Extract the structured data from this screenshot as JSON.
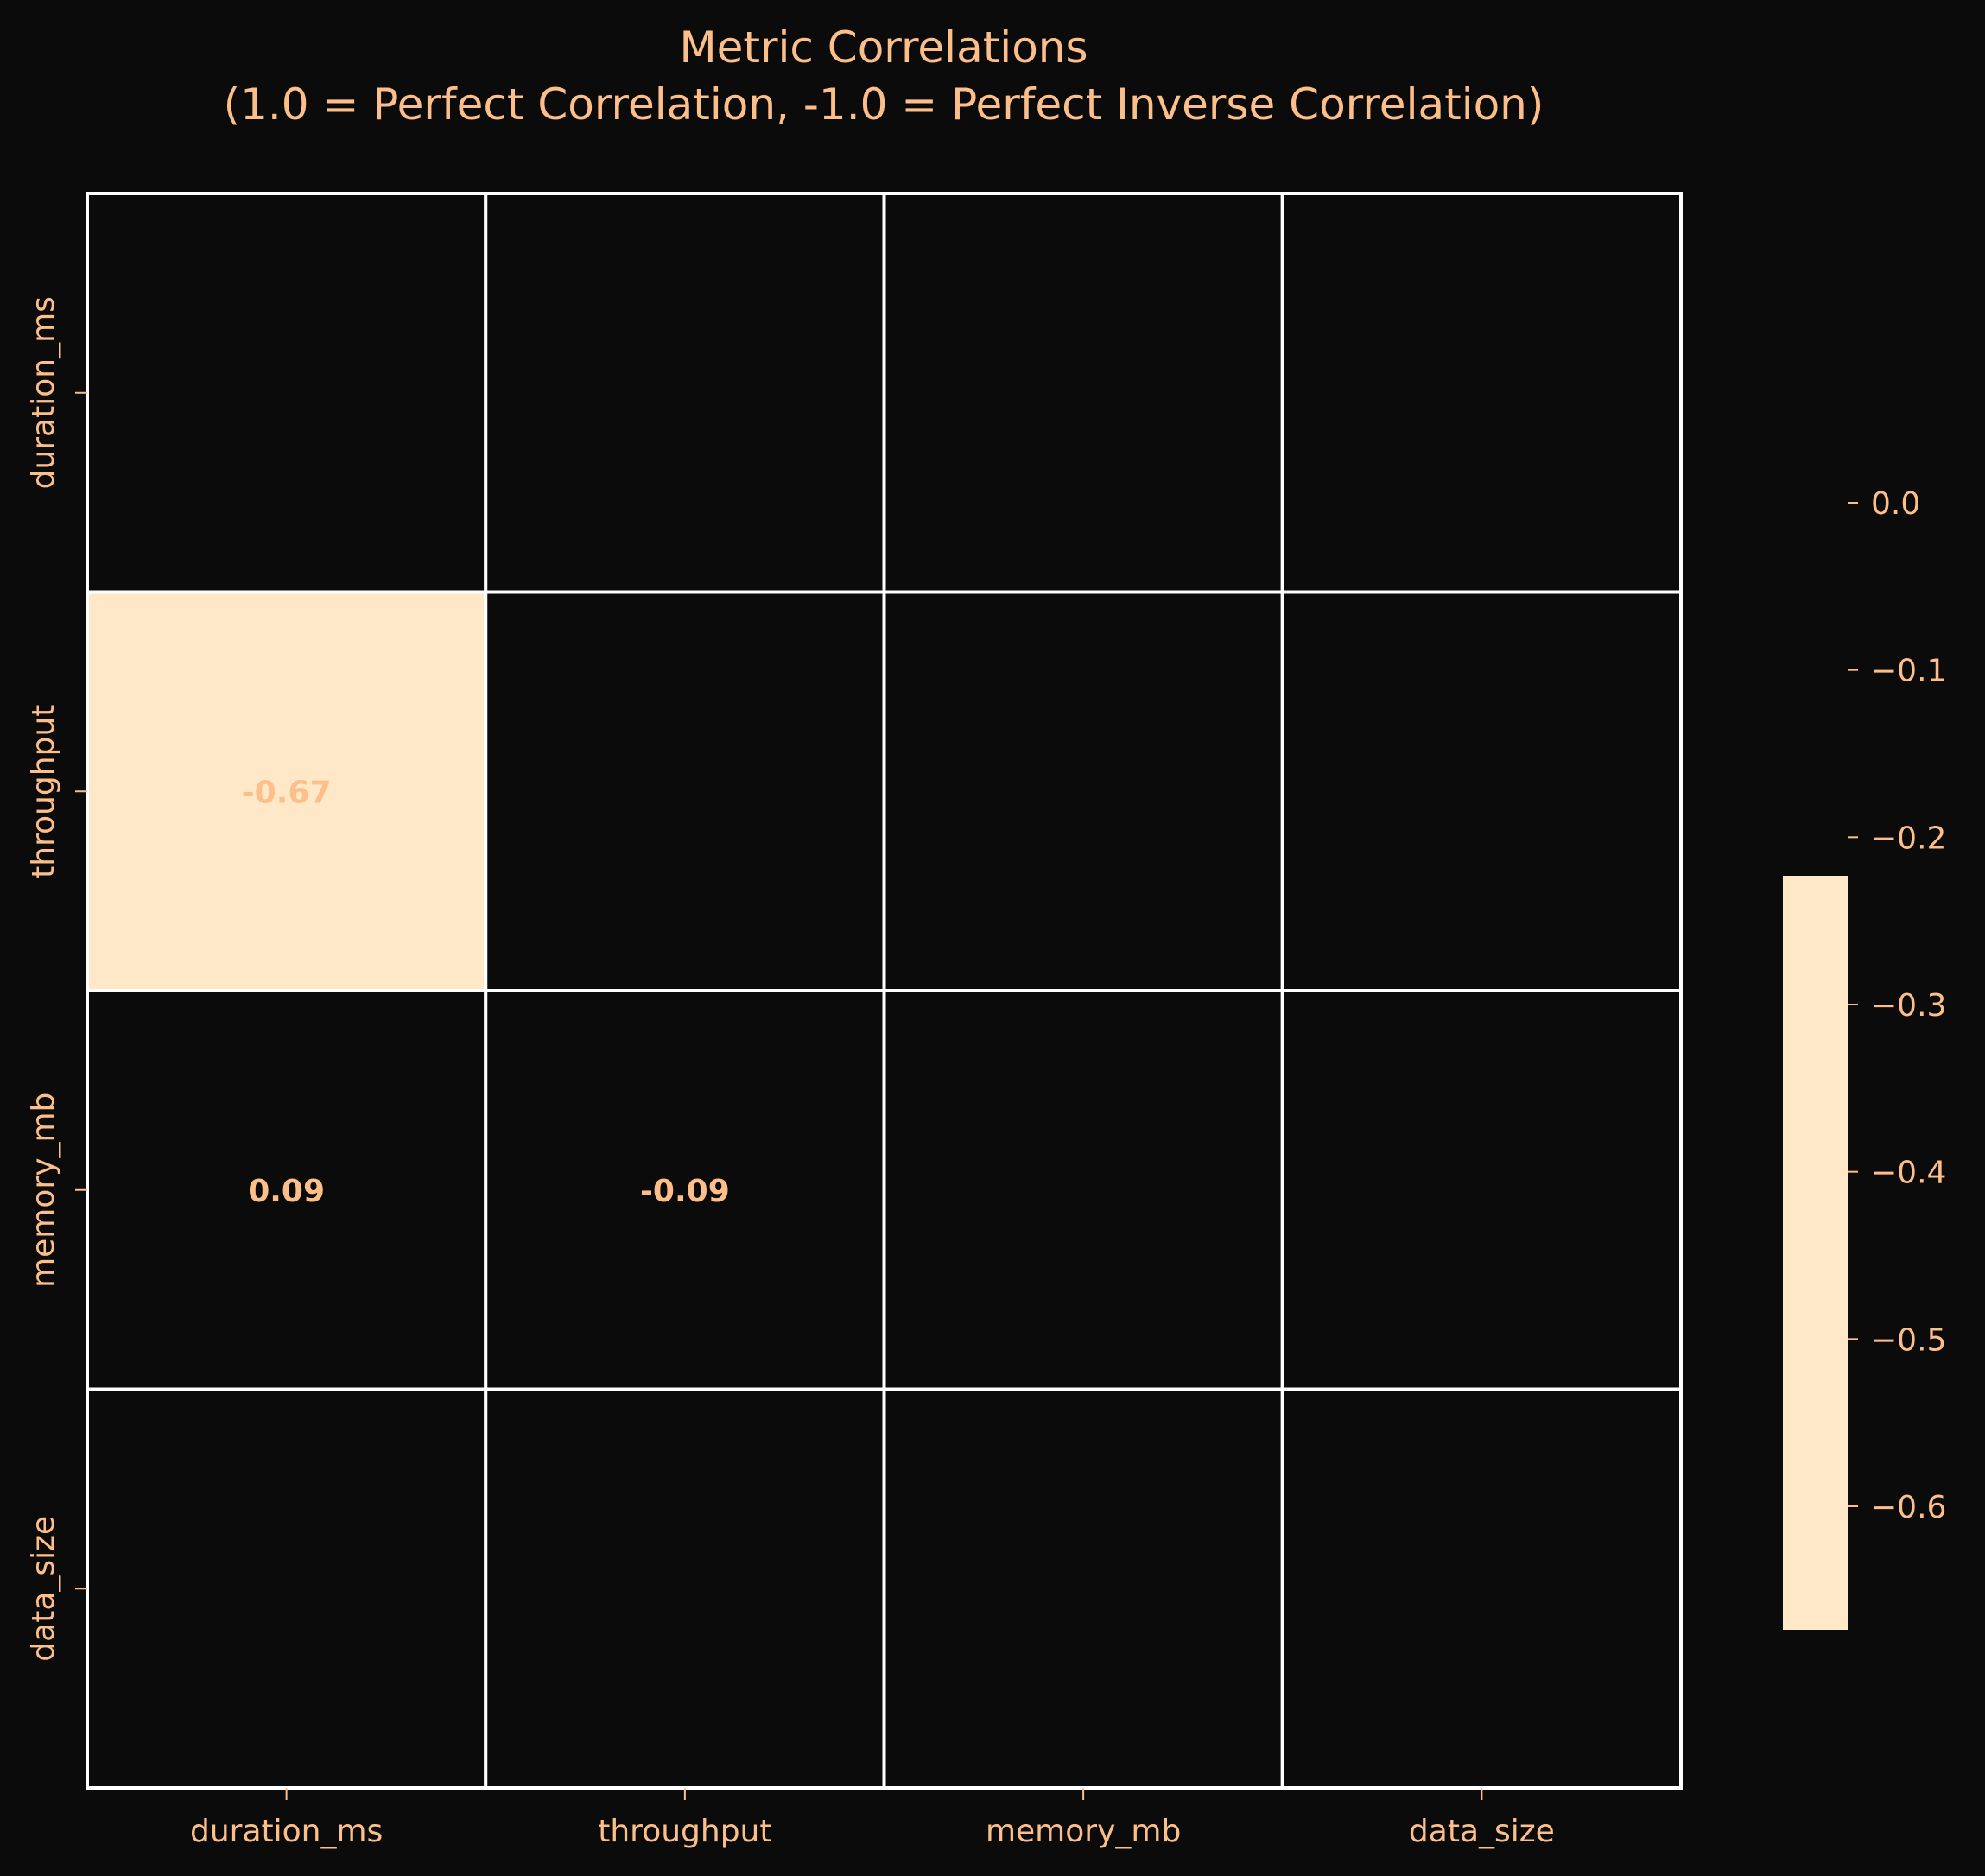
{
  "chart_data": {
    "type": "heatmap",
    "title_lines": [
      "Metric Correlations",
      "(1.0 = Perfect Correlation, -1.0 = Perfect Inverse Correlation)"
    ],
    "xlabel": "",
    "ylabel": "",
    "x_categories": [
      "duration_ms",
      "throughput",
      "memory_mb",
      "data_size"
    ],
    "y_categories": [
      "duration_ms",
      "throughput",
      "memory_mb",
      "data_size"
    ],
    "cells": [
      {
        "row": 1,
        "col": 0,
        "value": -0.67,
        "label": "-0.67"
      },
      {
        "row": 2,
        "col": 0,
        "value": 0.09,
        "label": "0.09"
      },
      {
        "row": 2,
        "col": 1,
        "value": -0.09,
        "label": "-0.09"
      }
    ],
    "colorbar": {
      "range": [
        -0.67,
        0.0
      ],
      "ticks": [
        0.0,
        -0.1,
        -0.2,
        -0.3,
        -0.4,
        -0.5,
        -0.6
      ],
      "tick_labels": [
        "0.0",
        "−0.1",
        "−0.2",
        "−0.3",
        "−0.4",
        "−0.5",
        "−0.6"
      ]
    },
    "colors": {
      "background": "#0b0b0b",
      "text": "#fcbf8a",
      "grid": "#ffffff",
      "highlight": "#ffe8c8",
      "empty_cell": "#0b0b0b"
    }
  }
}
